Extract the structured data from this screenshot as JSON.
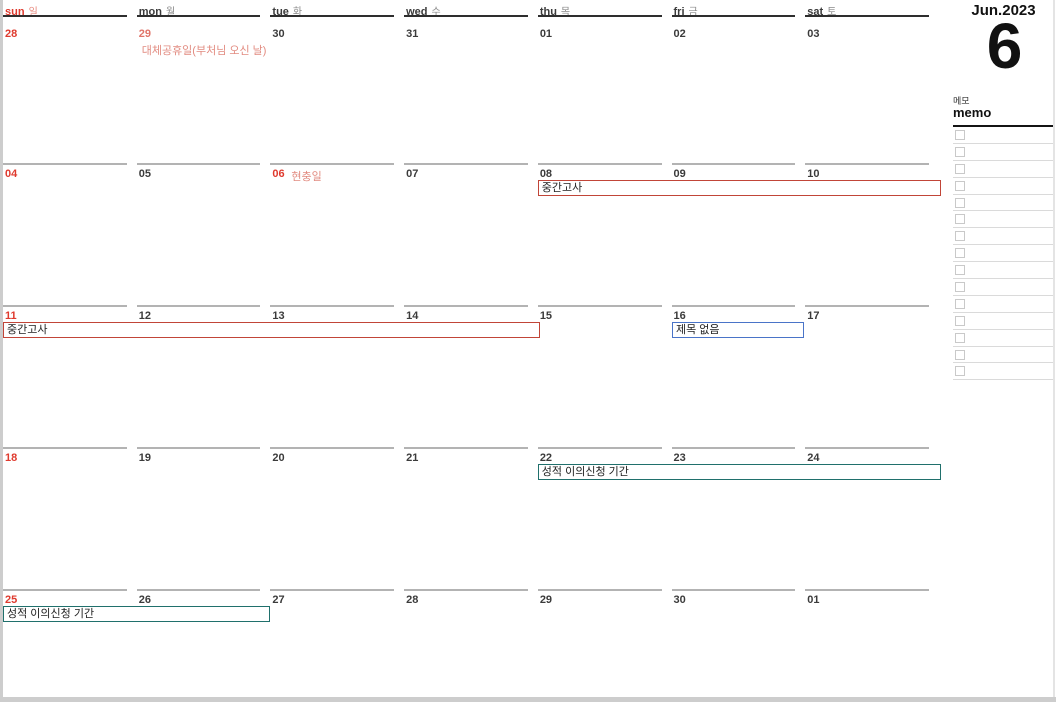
{
  "month": {
    "label": "Jun.2023",
    "number": "6"
  },
  "weekday_header": [
    {
      "en": "sun",
      "ko": "일"
    },
    {
      "en": "mon",
      "ko": "월"
    },
    {
      "en": "tue",
      "ko": "화"
    },
    {
      "en": "wed",
      "ko": "수"
    },
    {
      "en": "thu",
      "ko": "목"
    },
    {
      "en": "fri",
      "ko": "금"
    },
    {
      "en": "sat",
      "ko": "토"
    }
  ],
  "weeks": [
    {
      "days": [
        {
          "date": "28"
        },
        {
          "date": "29",
          "holiday": "대체공휴일(부처님 오신 날)"
        },
        {
          "date": "30"
        },
        {
          "date": "31"
        },
        {
          "date": "01"
        },
        {
          "date": "02"
        },
        {
          "date": "03"
        }
      ],
      "events": []
    },
    {
      "days": [
        {
          "date": "04"
        },
        {
          "date": "05"
        },
        {
          "date": "06",
          "holiday": "현충일"
        },
        {
          "date": "07"
        },
        {
          "date": "08"
        },
        {
          "date": "09"
        },
        {
          "date": "10"
        }
      ],
      "events": [
        {
          "label": "중간고사",
          "color": "#c14538",
          "days": "thu-sat"
        }
      ]
    },
    {
      "days": [
        {
          "date": "11"
        },
        {
          "date": "12"
        },
        {
          "date": "13"
        },
        {
          "date": "14"
        },
        {
          "date": "15"
        },
        {
          "date": "16"
        },
        {
          "date": "17"
        }
      ],
      "events": [
        {
          "label": "중간고사",
          "color": "#c14538",
          "days": "sun-wed"
        },
        {
          "label": "제목 없음",
          "color": "#4a74c8",
          "days": "fri"
        }
      ]
    },
    {
      "days": [
        {
          "date": "18"
        },
        {
          "date": "19"
        },
        {
          "date": "20"
        },
        {
          "date": "21"
        },
        {
          "date": "22"
        },
        {
          "date": "23"
        },
        {
          "date": "24"
        }
      ],
      "events": [
        {
          "label": "성적 이의신청 기간",
          "color": "#20706c",
          "days": "thu-sat"
        }
      ]
    },
    {
      "days": [
        {
          "date": "25"
        },
        {
          "date": "26"
        },
        {
          "date": "27"
        },
        {
          "date": "28"
        },
        {
          "date": "29"
        },
        {
          "date": "30"
        },
        {
          "date": "01"
        }
      ],
      "events": [
        {
          "label": "성적 이의신청 기간",
          "color": "#20706c",
          "days": "sun-mon"
        }
      ]
    }
  ],
  "memo": {
    "title_ko": "메모",
    "title_en": "memo",
    "rows": 15
  },
  "colors": {
    "sunday_red": "#df3a2e",
    "holiday_text": "#e28b80",
    "event_red_border": "#c14538",
    "event_blue_border": "#4a74c8",
    "event_teal_border": "#20706c"
  }
}
